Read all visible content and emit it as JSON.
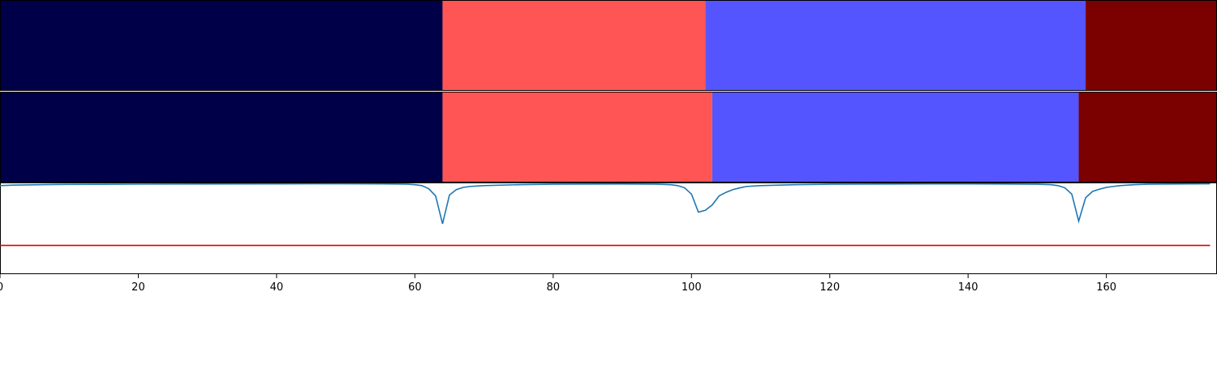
{
  "chart_data": [
    {
      "type": "heatmap",
      "segments": [
        {
          "start": 0,
          "end": 64,
          "color": "#000048"
        },
        {
          "start": 64,
          "end": 102,
          "color": "#ff5555"
        },
        {
          "start": 102,
          "end": 157,
          "color": "#5555ff"
        },
        {
          "start": 157,
          "end": 176,
          "color": "#7b0000"
        }
      ],
      "xlim": [
        0,
        176
      ]
    },
    {
      "type": "heatmap",
      "segments": [
        {
          "start": 0,
          "end": 64,
          "color": "#000048"
        },
        {
          "start": 64,
          "end": 103,
          "color": "#ff5555"
        },
        {
          "start": 103,
          "end": 156,
          "color": "#5555ff"
        },
        {
          "start": 156,
          "end": 176,
          "color": "#7b0000"
        }
      ],
      "xlim": [
        0,
        176
      ]
    },
    {
      "type": "line",
      "xlim": [
        0,
        176
      ],
      "ylim": [
        0,
        1
      ],
      "xticks": [
        "0",
        "20",
        "40",
        "60",
        "80",
        "100",
        "120",
        "140",
        "160"
      ],
      "series": [
        {
          "color": "#1f77b4",
          "x": [
            0,
            2,
            4,
            6,
            8,
            10,
            20,
            30,
            40,
            50,
            55,
            58,
            59,
            60,
            61,
            62,
            63,
            64,
            65,
            66,
            67,
            68,
            70,
            75,
            80,
            90,
            95,
            97,
            98,
            99,
            100,
            101,
            102,
            103,
            104,
            105,
            106,
            107,
            108,
            110,
            115,
            120,
            130,
            140,
            145,
            150,
            152,
            153,
            154,
            155,
            156,
            157,
            158,
            159,
            160,
            161,
            162,
            164,
            166,
            170,
            175
          ],
          "y": [
            0.975,
            0.98,
            0.983,
            0.985,
            0.987,
            0.988,
            0.991,
            0.993,
            0.994,
            0.995,
            0.994,
            0.992,
            0.99,
            0.985,
            0.975,
            0.94,
            0.86,
            0.55,
            0.87,
            0.93,
            0.955,
            0.965,
            0.975,
            0.985,
            0.99,
            0.993,
            0.99,
            0.985,
            0.975,
            0.95,
            0.88,
            0.68,
            0.7,
            0.76,
            0.86,
            0.9,
            0.93,
            0.95,
            0.965,
            0.975,
            0.985,
            0.99,
            0.993,
            0.994,
            0.993,
            0.99,
            0.985,
            0.975,
            0.95,
            0.88,
            0.58,
            0.84,
            0.91,
            0.935,
            0.955,
            0.965,
            0.975,
            0.985,
            0.99,
            0.993,
            0.995
          ]
        },
        {
          "color": "#dd0000",
          "x": [
            0,
            175
          ],
          "y": [
            0.31,
            0.31
          ]
        }
      ]
    }
  ]
}
